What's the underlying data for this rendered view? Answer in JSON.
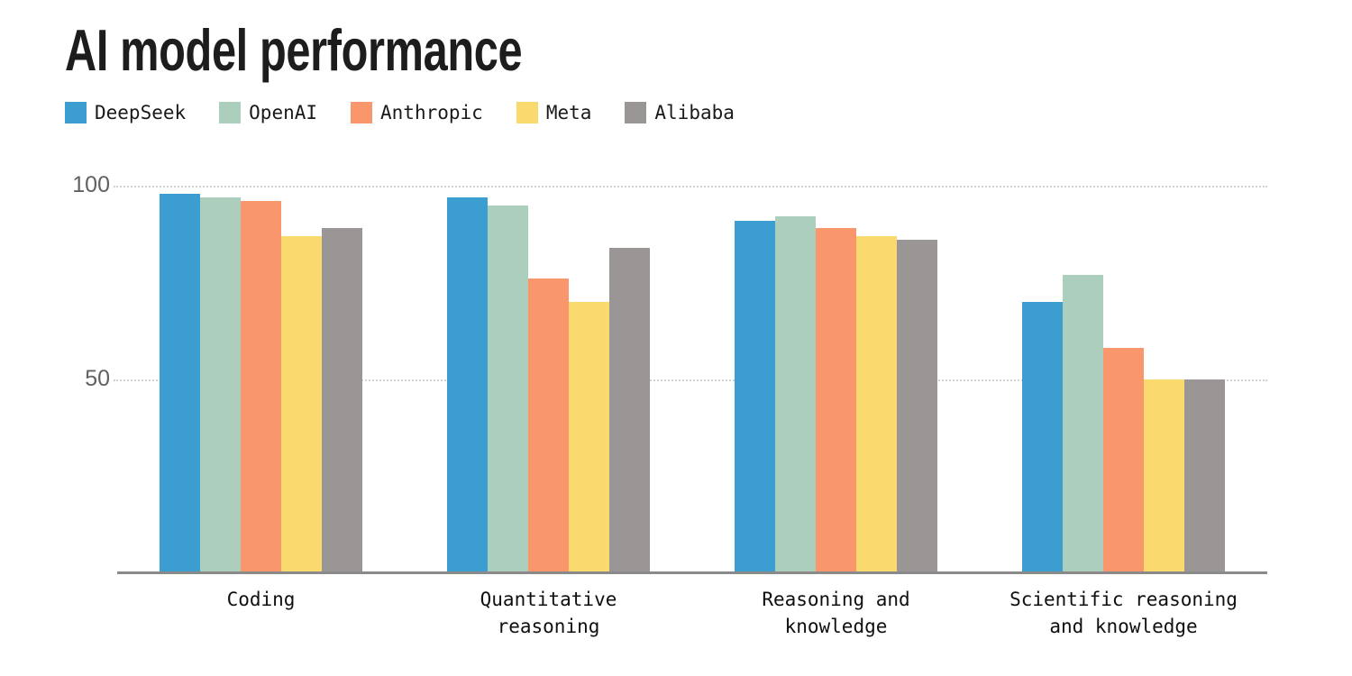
{
  "title": "AI model performance",
  "chart_data": {
    "type": "bar",
    "title": "AI model performance",
    "categories": [
      "Coding",
      "Quantitative reasoning",
      "Reasoning and knowledge",
      "Scientific reasoning and knowledge"
    ],
    "category_label_lines": [
      [
        "Coding"
      ],
      [
        "Quantitative",
        "reasoning"
      ],
      [
        "Reasoning and",
        "knowledge"
      ],
      [
        "Scientific reasoning",
        "and knowledge"
      ]
    ],
    "series": [
      {
        "name": "DeepSeek",
        "color": "#3C9DD1",
        "values": [
          98,
          97,
          91,
          70
        ]
      },
      {
        "name": "OpenAI",
        "color": "#ACCEBC",
        "values": [
          97,
          95,
          92,
          77
        ]
      },
      {
        "name": "Anthropic",
        "color": "#F9966B",
        "values": [
          96,
          76,
          89,
          58
        ]
      },
      {
        "name": "Meta",
        "color": "#FAD96E",
        "values": [
          87,
          70,
          87,
          50
        ]
      },
      {
        "name": "Alibaba",
        "color": "#9A9696",
        "values": [
          89,
          84,
          86,
          50
        ]
      }
    ],
    "ylim": [
      0,
      100
    ],
    "yticks": [
      50,
      100
    ],
    "grid": "horizontal-dotted",
    "legend_position": "top-left",
    "axis_colors": {
      "gridline": "#d2d2d2",
      "baseline": "#8a8a8a",
      "tick_text": "#616161"
    }
  }
}
